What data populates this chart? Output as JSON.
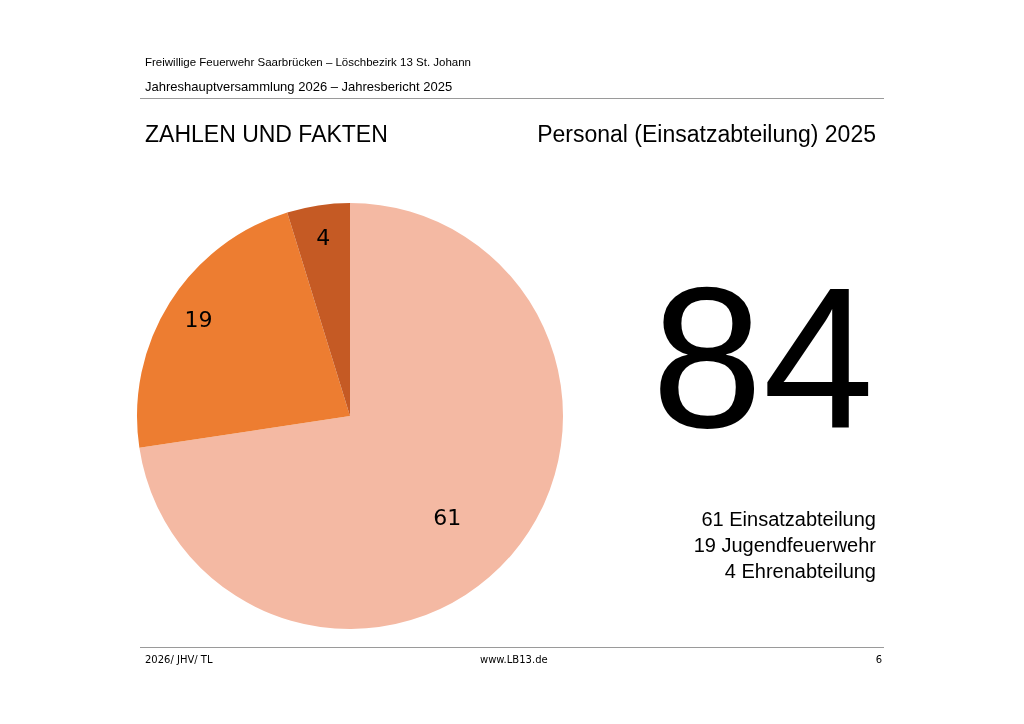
{
  "chart_data": {
    "type": "pie",
    "title": "Personal (Einsatzabteilung) 2025",
    "subtitle": "ZAHLEN UND FAKTEN",
    "categories": [
      null,
      null,
      null
    ],
    "values": [
      61,
      19,
      4
    ],
    "colors": [
      "#f4b9a3",
      "#ed7d31",
      "#c55a24"
    ],
    "data_labels": true,
    "totals": [
      "84"
    ],
    "annotations": [
      "Freiwillige Feuerwehr Saarbrücken – Löschbezirk 13 St. Johann",
      "Jahreshauptversammlung 2026 – Jahresbericht 2025",
      "2026/ JHV/ TL",
      "www.LB13.de",
      "6",
      "61 Einsatzabteilung",
      "19 Jugendfeuerwehr",
      "4 Ehrenabteilung"
    ]
  }
}
